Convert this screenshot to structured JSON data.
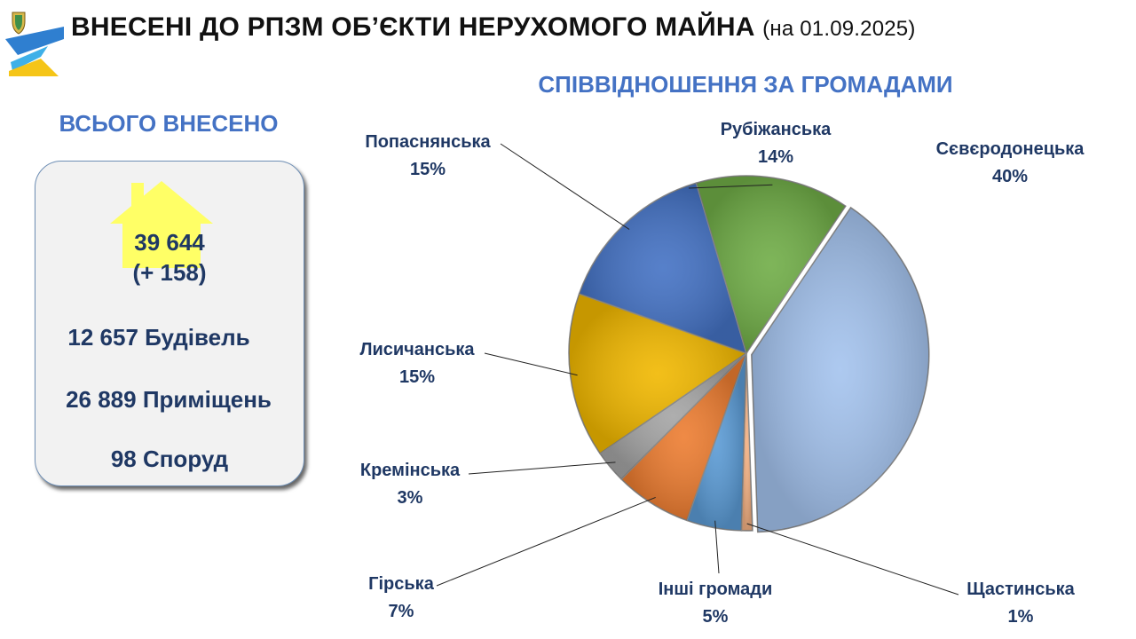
{
  "header": {
    "title": "ВНЕСЕНІ ДО РПЗМ ОБ’ЄКТИ НЕРУХОМОГО МАЙНА",
    "date": "(на 01.09.2025)"
  },
  "summary": {
    "heading": "ВСЬОГО ВНЕСЕНО",
    "total": "39 644",
    "delta": "(+ 158)",
    "buildings": "12 657  Будівель",
    "premises": "26 889  Приміщень",
    "structures": "98  Споруд"
  },
  "colors": {
    "title": "#111111",
    "accent_blue": "#4472c4",
    "dark_text": "#1f3864",
    "house": "#ffff66"
  },
  "chart_data": {
    "type": "pie",
    "title": "СПІВВІДНОШЕННЯ ЗА ГРОМАДАМИ",
    "slices": [
      {
        "label": "Сєвєродонецька",
        "pct": "40%",
        "value": 40,
        "color": "#a4c3ee"
      },
      {
        "label": "Щастинська",
        "pct": "1%",
        "value": 1,
        "color": "#f4b183"
      },
      {
        "label": "Інші громади",
        "pct": "5%",
        "value": 5,
        "color": "#5b9bd5"
      },
      {
        "label": "Гірська",
        "pct": "7%",
        "value": 7,
        "color": "#ed7d31"
      },
      {
        "label": "Кремінська",
        "pct": "3%",
        "value": 3,
        "color": "#a5a5a5"
      },
      {
        "label": "Лисичанська",
        "pct": "15%",
        "value": 15,
        "color": "#f1b800"
      },
      {
        "label": "Попаснянська",
        "pct": "15%",
        "value": 15,
        "color": "#4472c4"
      },
      {
        "label": "Рубіжанська",
        "pct": "14%",
        "value": 14,
        "color": "#70ad47"
      }
    ]
  }
}
